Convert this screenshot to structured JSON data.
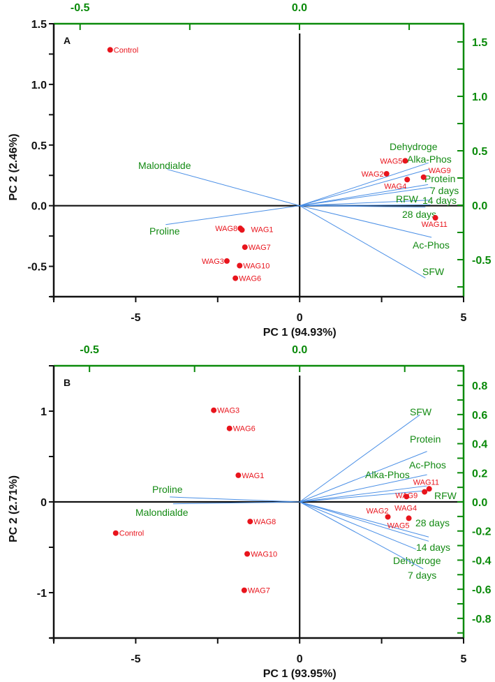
{
  "colors": {
    "points": "#e8141c",
    "loadings": "#4a8fe6",
    "loading_labels": "#138a13",
    "secondary_axis": "#0a8a0a",
    "axis": "#111111"
  },
  "chart_data": [
    {
      "type": "scatter",
      "subtype": "biplot",
      "panel_label": "A",
      "xlabel": "PC 1 (94.93%)",
      "ylabel": "PC 2 (2.46%)",
      "xlim": [
        -7.5,
        5
      ],
      "ylim": [
        -0.75,
        1.5
      ],
      "xticks": [
        "-5",
        "0",
        "5"
      ],
      "xtick_values": [
        -5,
        0,
        5
      ],
      "yticks": [
        "1.5",
        "1.0",
        "0.5",
        "0.0",
        "-0.5"
      ],
      "ytick_values": [
        1.5,
        1.0,
        0.5,
        0.0,
        -0.5
      ],
      "top_axis": {
        "lim": [
          -0.56,
          0.374
        ],
        "ticks": [
          "-0.5",
          "0.0"
        ],
        "tick_values": [
          -0.5,
          0.0
        ]
      },
      "right_axis": {
        "lim": [
          -0.84,
          1.667
        ],
        "ticks": [
          "1.5",
          "1.0",
          "0.5",
          "0.0",
          "-0.5"
        ],
        "tick_values": [
          1.5,
          1.0,
          0.5,
          0.0,
          -0.5
        ]
      },
      "scores": [
        {
          "name": "Control",
          "x": -5.78,
          "y": 1.285
        },
        {
          "name": "WAG5",
          "x": 3.22,
          "y": 0.37
        },
        {
          "name": "WAG2",
          "x": 2.65,
          "y": 0.263
        },
        {
          "name": "WAG4",
          "x": 3.28,
          "y": 0.215
        },
        {
          "name": "WAG9",
          "x": 3.78,
          "y": 0.235
        },
        {
          "name": "WAG11",
          "x": 4.14,
          "y": -0.1
        },
        {
          "name": "WAG8",
          "x": -1.81,
          "y": -0.187
        },
        {
          "name": "WAG1",
          "x": -1.76,
          "y": -0.2
        },
        {
          "name": "WAG7",
          "x": -1.67,
          "y": -0.342
        },
        {
          "name": "WAG3",
          "x": -2.22,
          "y": -0.456
        },
        {
          "name": "WAG10",
          "x": -1.83,
          "y": -0.494
        },
        {
          "name": "WAG6",
          "x": -1.96,
          "y": -0.598
        }
      ],
      "loadings": [
        {
          "name": "Dehydroge",
          "x": 0.294,
          "y": 0.389
        },
        {
          "name": "Alka-Phos",
          "x": 0.295,
          "y": 0.331
        },
        {
          "name": "Protein",
          "x": 0.293,
          "y": 0.19
        },
        {
          "name": "7 days",
          "x": 0.301,
          "y": 0.165
        },
        {
          "name": "RFW",
          "x": 0.298,
          "y": 0.047
        },
        {
          "name": "14 days",
          "x": 0.298,
          "y": 0.004
        },
        {
          "name": "28 days",
          "x": 0.287,
          "y": -0.017
        },
        {
          "name": "Ac-Phos",
          "x": 0.301,
          "y": -0.295
        },
        {
          "name": "SFW",
          "x": 0.287,
          "y": -0.669
        },
        {
          "name": "Malondialde",
          "x": -0.301,
          "y": 0.329
        },
        {
          "name": "Proline",
          "x": -0.305,
          "y": -0.178
        }
      ]
    },
    {
      "type": "scatter",
      "subtype": "biplot",
      "panel_label": "B",
      "xlabel": "PC 1 (93.95%)",
      "ylabel": "PC 2 (2.71%)",
      "xlim": [
        -7.5,
        5
      ],
      "ylim": [
        -1.5,
        1.5
      ],
      "xticks": [
        "-5",
        "0",
        "5"
      ],
      "xtick_values": [
        -5,
        0,
        5
      ],
      "yticks": [
        "1",
        "0",
        "-1"
      ],
      "ytick_values": [
        1,
        0,
        -1
      ],
      "top_axis": {
        "lim": [
          -0.585,
          0.39
        ],
        "ticks": [
          "-0.5",
          "0.0"
        ],
        "tick_values": [
          -0.5,
          0.0
        ]
      },
      "right_axis": {
        "lim": [
          -0.935,
          0.935
        ],
        "ticks": [
          "0.8",
          "0.6",
          "0.4",
          "0.2",
          "0.0",
          "-0.2",
          "-0.4",
          "-0.6",
          "-0.8"
        ],
        "tick_values": [
          0.8,
          0.6,
          0.4,
          0.2,
          0.0,
          -0.2,
          -0.4,
          -0.6,
          -0.8
        ]
      },
      "scores": [
        {
          "name": "WAG3",
          "x": -2.62,
          "y": 1.01
        },
        {
          "name": "WAG6",
          "x": -2.14,
          "y": 0.81
        },
        {
          "name": "WAG1",
          "x": -1.87,
          "y": 0.293
        },
        {
          "name": "Control",
          "x": -5.61,
          "y": -0.344
        },
        {
          "name": "WAG8",
          "x": -1.51,
          "y": -0.216
        },
        {
          "name": "WAG10",
          "x": -1.6,
          "y": -0.573
        },
        {
          "name": "WAG7",
          "x": -1.69,
          "y": -0.974
        },
        {
          "name": "WAG11",
          "x": 3.95,
          "y": 0.144
        },
        {
          "name": "WAG4",
          "x": 3.81,
          "y": 0.111
        },
        {
          "name": "WAG9",
          "x": 3.26,
          "y": 0.059
        },
        {
          "name": "WAG2",
          "x": 2.69,
          "y": -0.165
        },
        {
          "name": "WAG5",
          "x": 3.33,
          "y": -0.18
        }
      ],
      "loadings": [
        {
          "name": "SFW",
          "x": 0.286,
          "y": 0.598
        },
        {
          "name": "Protein",
          "x": 0.303,
          "y": 0.347
        },
        {
          "name": "Ac-Phos",
          "x": 0.303,
          "y": 0.187
        },
        {
          "name": "Alka-Phos",
          "x": 0.303,
          "y": 0.11
        },
        {
          "name": "RFW",
          "x": 0.303,
          "y": 0.078
        },
        {
          "name": "Proline",
          "x": -0.309,
          "y": 0.034
        },
        {
          "name": "Malondialde",
          "x": -0.301,
          "y": -0.013
        },
        {
          "name": "28 days",
          "x": 0.307,
          "y": -0.241
        },
        {
          "name": "14 days",
          "x": 0.307,
          "y": -0.27
        },
        {
          "name": "Dehydroge",
          "x": 0.277,
          "y": -0.325
        },
        {
          "name": "7 days",
          "x": 0.294,
          "y": -0.46
        }
      ]
    }
  ]
}
